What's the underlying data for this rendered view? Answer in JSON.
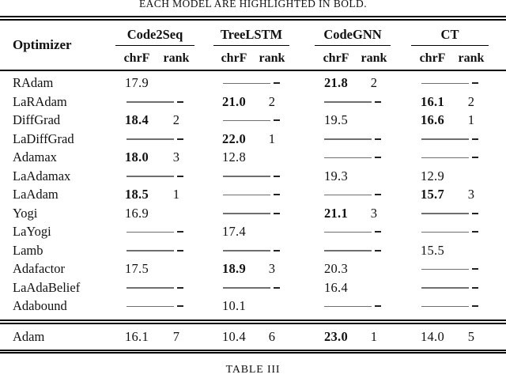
{
  "page": {
    "caption_top": "EACH MODEL ARE HIGHLIGHTED IN BOLD.",
    "caption_bottom": "TABLE III"
  },
  "table": {
    "optimizer_header": "Optimizer",
    "model_headers": [
      "Code2Seq",
      "TreeLSTM",
      "CodeGNN",
      "CT"
    ],
    "sub_headers": [
      "chrF",
      "rank"
    ],
    "rows": [
      {
        "optimizer": "RAdam",
        "cells": [
          {
            "chrf": "17.9",
            "rank": "",
            "bold": false
          },
          null,
          {
            "chrf": "21.8",
            "rank": "2",
            "bold": true
          },
          null
        ]
      },
      {
        "optimizer": "LaRAdam",
        "cells": [
          null,
          {
            "chrf": "21.0",
            "rank": "2",
            "bold": true
          },
          null,
          {
            "chrf": "16.1",
            "rank": "2",
            "bold": true
          }
        ]
      },
      {
        "optimizer": "DiffGrad",
        "cells": [
          {
            "chrf": "18.4",
            "rank": "2",
            "bold": true
          },
          null,
          {
            "chrf": "19.5",
            "rank": "",
            "bold": false
          },
          {
            "chrf": "16.6",
            "rank": "1",
            "bold": true
          }
        ]
      },
      {
        "optimizer": "LaDiffGrad",
        "cells": [
          null,
          {
            "chrf": "22.0",
            "rank": "1",
            "bold": true
          },
          null,
          null
        ]
      },
      {
        "optimizer": "Adamax",
        "cells": [
          {
            "chrf": "18.0",
            "rank": "3",
            "bold": true
          },
          {
            "chrf": "12.8",
            "rank": "",
            "bold": false
          },
          null,
          null
        ]
      },
      {
        "optimizer": "LaAdamax",
        "cells": [
          null,
          null,
          {
            "chrf": "19.3",
            "rank": "",
            "bold": false
          },
          {
            "chrf": "12.9",
            "rank": "",
            "bold": false
          }
        ]
      },
      {
        "optimizer": "LaAdam",
        "cells": [
          {
            "chrf": "18.5",
            "rank": "1",
            "bold": true
          },
          null,
          null,
          {
            "chrf": "15.7",
            "rank": "3",
            "bold": true
          }
        ]
      },
      {
        "optimizer": "Yogi",
        "cells": [
          {
            "chrf": "16.9",
            "rank": "",
            "bold": false
          },
          null,
          {
            "chrf": "21.1",
            "rank": "3",
            "bold": true
          },
          null
        ]
      },
      {
        "optimizer": "LaYogi",
        "cells": [
          null,
          {
            "chrf": "17.4",
            "rank": "",
            "bold": false
          },
          null,
          null
        ]
      },
      {
        "optimizer": "Lamb",
        "cells": [
          null,
          null,
          null,
          {
            "chrf": "15.5",
            "rank": "",
            "bold": false
          }
        ]
      },
      {
        "optimizer": "Adafactor",
        "cells": [
          {
            "chrf": "17.5",
            "rank": "",
            "bold": false
          },
          {
            "chrf": "18.9",
            "rank": "3",
            "bold": true
          },
          {
            "chrf": "20.3",
            "rank": "",
            "bold": false
          },
          null
        ]
      },
      {
        "optimizer": "LaAdaBelief",
        "cells": [
          null,
          null,
          {
            "chrf": "16.4",
            "rank": "",
            "bold": false
          },
          null
        ]
      },
      {
        "optimizer": "Adabound",
        "cells": [
          null,
          {
            "chrf": "10.1",
            "rank": "",
            "bold": false
          },
          null,
          null
        ]
      }
    ],
    "baseline_row": {
      "optimizer": "Adam",
      "cells": [
        {
          "chrf": "16.1",
          "rank": "7",
          "bold": false
        },
        {
          "chrf": "10.4",
          "rank": "6",
          "bold": false
        },
        {
          "chrf": "23.0",
          "rank": "1",
          "bold": true
        },
        {
          "chrf": "14.0",
          "rank": "5",
          "bold": false
        }
      ]
    }
  }
}
